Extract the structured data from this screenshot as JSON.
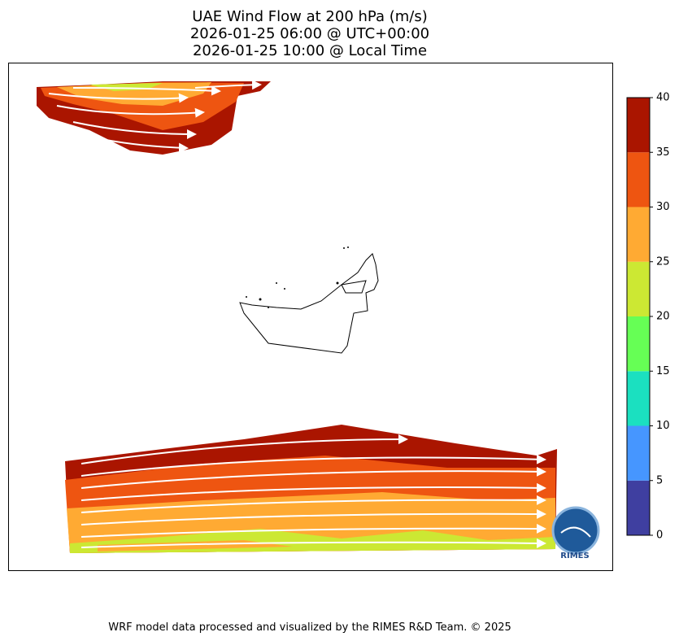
{
  "title": [
    "UAE Wind Flow at 200 hPa (m/s)",
    "2026-01-25 06:00 @ UTC+00:00",
    "2026-01-25 10:00 @ Local Time"
  ],
  "colorbar": {
    "levels": [
      0,
      5,
      10,
      15,
      20,
      25,
      30,
      35,
      40
    ],
    "colors": [
      "#3f3fa0",
      "#4696ff",
      "#1be0c0",
      "#66ff55",
      "#cce833",
      "#ffaa33",
      "#ee5511",
      "#aa1500"
    ],
    "ticks": [
      0,
      5,
      10,
      15,
      20,
      25,
      30,
      35,
      40
    ]
  },
  "logo": "RIMES",
  "footer": "WRF model data processed and visualized by the RIMES R&D Team. © 2025"
}
